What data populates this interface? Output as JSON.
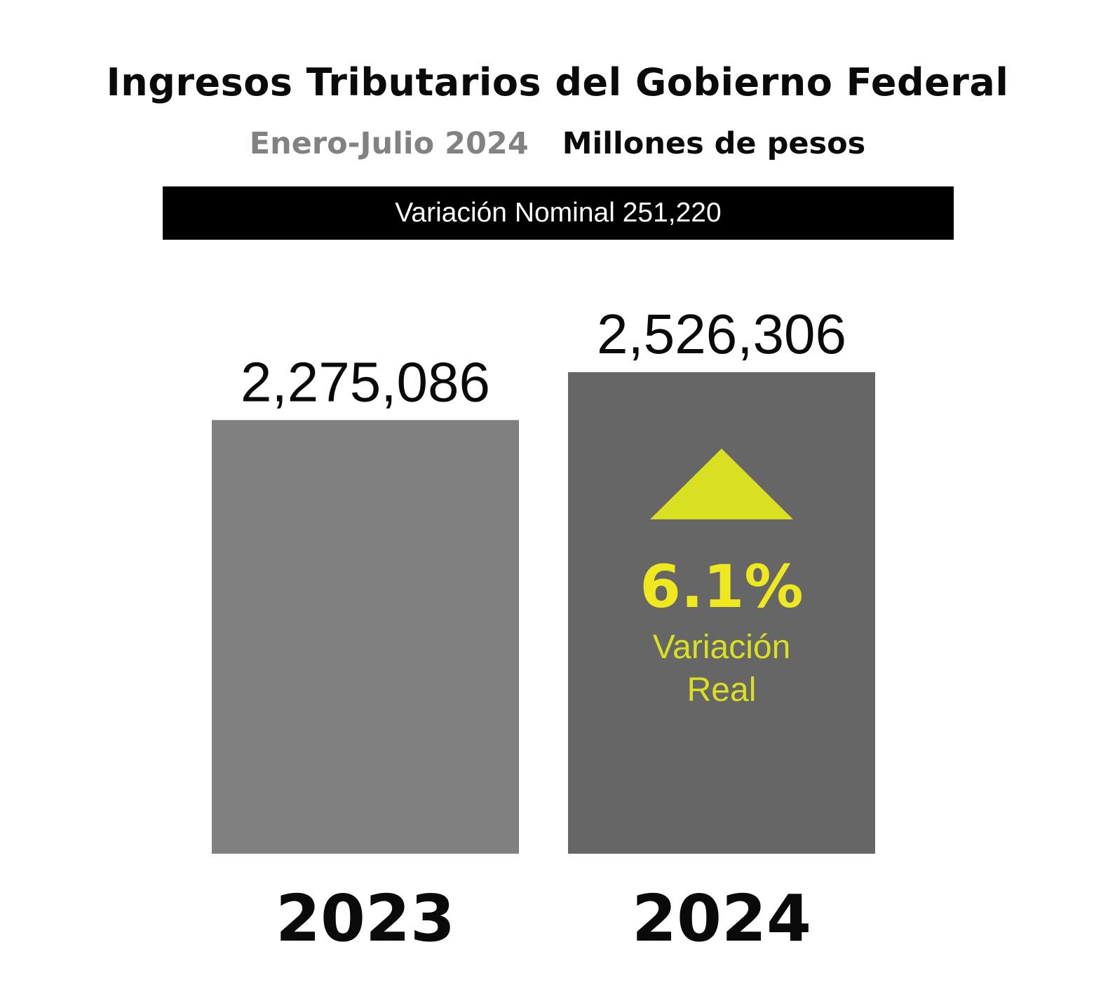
{
  "title": "Ingresos Tributarios del Gobierno Federal",
  "subtitle_period": "Enero-Julio 2024",
  "subtitle_unit": "Millones de pesos",
  "nominal_banner": "Variación Nominal 251,220",
  "colors": {
    "bar_2023": "#808080",
    "bar_2024": "#666666",
    "highlight": "#d9e021"
  },
  "chart_data": {
    "type": "bar",
    "categories": [
      "2023",
      "2024"
    ],
    "values": [
      2275086,
      2526306
    ],
    "value_labels": [
      "2,275,086",
      "2,526,306"
    ],
    "title": "Ingresos Tributarios del Gobierno Federal",
    "ylabel": "Millones de pesos",
    "annotation": {
      "icon": "up-triangle-icon",
      "value": "6.1%",
      "label_line1": "Variación",
      "label_line2": "Real"
    }
  }
}
